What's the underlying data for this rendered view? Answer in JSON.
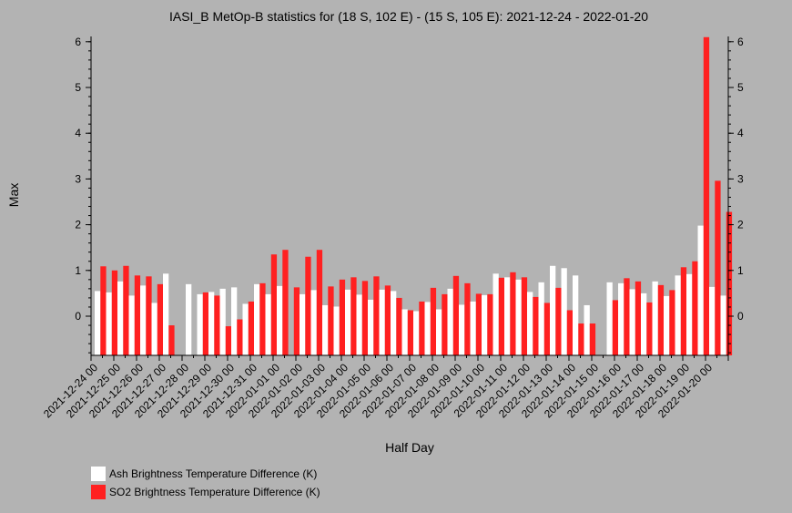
{
  "chart_data": {
    "type": "bar",
    "title": "IASI_B MetOp-B statistics for (18 S, 102 E) - (15 S, 105 E): 2021-12-24 - 2022-01-20",
    "xlabel": "Half Day",
    "ylabel": "Max",
    "ylim": [
      -0.85,
      6.1
    ],
    "yticks": [
      0,
      1,
      2,
      3,
      4,
      5,
      6
    ],
    "grid": false,
    "legend_position": "bottom-left",
    "xtick_labels": [
      "2021-12-24 00",
      "2021-12-25 00",
      "2021-12-26 00",
      "2021-12-27 00",
      "2021-12-28 00",
      "2021-12-29 00",
      "2021-12-30 00",
      "2021-12-31 00",
      "2022-01-01 00",
      "2022-01-02 00",
      "2022-01-03 00",
      "2022-01-04 00",
      "2022-01-05 00",
      "2022-01-06 00",
      "2022-01-07 00",
      "2022-01-08 00",
      "2022-01-09 00",
      "2022-01-10 00",
      "2022-01-11 00",
      "2022-01-12 00",
      "2022-01-13 00",
      "2022-01-14 00",
      "2022-01-15 00",
      "2022-01-16 00",
      "2022-01-17 00",
      "2022-01-18 00",
      "2022-01-19 00",
      "2022-01-20 00"
    ],
    "series": [
      {
        "name": "Ash Brightness Temperature Difference (K)",
        "color": "#ffffff",
        "values": [
          0.55,
          0.52,
          0.76,
          0.45,
          0.67,
          0.29,
          0.93,
          null,
          0.7,
          0.48,
          0.53,
          0.6,
          0.63,
          0.27,
          0.7,
          0.48,
          0.66,
          null,
          0.48,
          0.57,
          0.24,
          0.21,
          0.58,
          0.47,
          0.36,
          0.58,
          0.55,
          0.15,
          0.11,
          0.31,
          0.15,
          0.6,
          0.25,
          0.32,
          0.46,
          0.93,
          0.85,
          0.8,
          0.53,
          0.74,
          1.1,
          1.05,
          0.89,
          0.24,
          null,
          0.74,
          0.72,
          0.59,
          0.5,
          0.76,
          0.44,
          0.89,
          0.92,
          1.98,
          0.64,
          0.45
        ]
      },
      {
        "name": "SO2 Brightness Temperature Difference (K)",
        "color": "#ff2020",
        "values": [
          1.09,
          1.0,
          1.1,
          0.89,
          0.87,
          0.7,
          -0.2,
          null,
          null,
          0.52,
          0.45,
          -0.22,
          -0.07,
          0.32,
          0.72,
          1.35,
          1.45,
          0.63,
          1.3,
          1.45,
          0.65,
          0.8,
          0.85,
          0.77,
          0.87,
          0.67,
          0.4,
          0.13,
          0.32,
          0.62,
          0.48,
          0.88,
          0.72,
          0.49,
          0.48,
          0.84,
          0.96,
          0.85,
          0.42,
          0.29,
          0.62,
          0.13,
          -0.16,
          -0.16,
          null,
          0.35,
          0.83,
          0.76,
          0.3,
          0.68,
          0.57,
          1.07,
          1.2,
          6.1,
          2.96,
          2.28
        ]
      }
    ]
  }
}
